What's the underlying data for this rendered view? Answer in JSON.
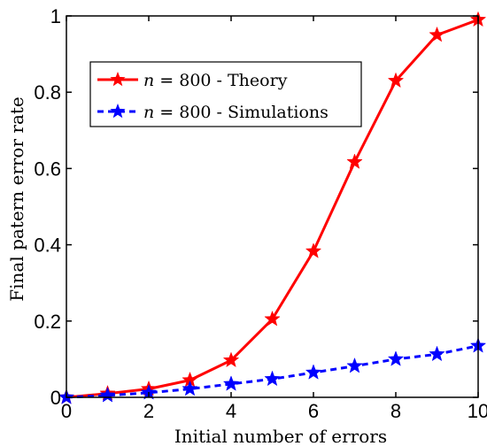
{
  "chart_data": {
    "type": "line",
    "title": "",
    "xlabel": "Initial number of errors",
    "ylabel": "Final patern error rate",
    "xlim": [
      0,
      10
    ],
    "ylim": [
      0,
      1
    ],
    "x_ticks": [
      "0",
      "2",
      "4",
      "6",
      "8",
      "10"
    ],
    "y_ticks": [
      "0",
      "0.2",
      "0.4",
      "0.6",
      "0.8",
      "1"
    ],
    "grid": false,
    "legend_position": "upper-left",
    "x": [
      0,
      1,
      2,
      3,
      4,
      5,
      6,
      7,
      8,
      9,
      10
    ],
    "series": [
      {
        "name": "n = 800 - Theory",
        "name_parts": {
          "var": "n",
          "rest": " = 800 - Theory"
        },
        "color": "#ff0000",
        "line_style": "solid",
        "marker": "star",
        "values": [
          0.0,
          0.01,
          0.022,
          0.045,
          0.097,
          0.205,
          0.383,
          0.617,
          0.83,
          0.95,
          0.99
        ]
      },
      {
        "name": "n = 800 - Simulations",
        "name_parts": {
          "var": "n",
          "rest": " = 800 - Simulations"
        },
        "color": "#0000ff",
        "line_style": "dashed",
        "marker": "star",
        "values": [
          0.0,
          0.005,
          0.012,
          0.022,
          0.035,
          0.048,
          0.065,
          0.082,
          0.1,
          0.113,
          0.135
        ]
      }
    ]
  }
}
